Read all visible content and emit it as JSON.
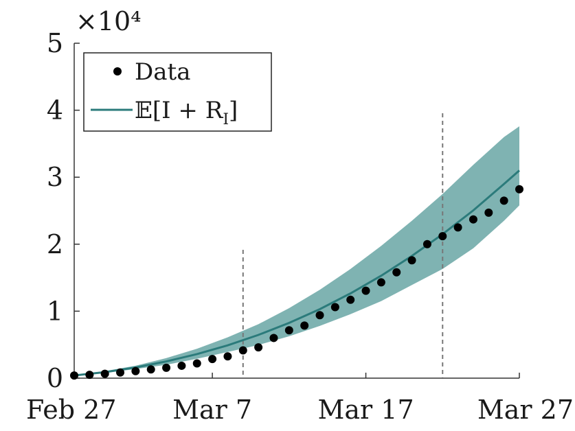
{
  "chart_data": {
    "type": "line",
    "title": "",
    "xlabel": "",
    "ylabel": "",
    "y_multiplier_label": "×10⁴",
    "x_ticks": [
      "Feb 27",
      "Mar 7",
      "Mar 17",
      "Mar 27"
    ],
    "x_tick_days": [
      0,
      9,
      19,
      29
    ],
    "xlim_days": [
      0,
      29
    ],
    "y_ticks": [
      "0",
      "1",
      "2",
      "3",
      "4",
      "5"
    ],
    "y_tick_values": [
      0,
      10000,
      20000,
      30000,
      40000,
      50000
    ],
    "ylim": [
      0,
      50000
    ],
    "vertical_lines_days": [
      11,
      24
    ],
    "colors": {
      "model": "#2b7b7b",
      "band": "#7fb3b2",
      "data": "#000000",
      "vline": "#777777",
      "axis": "#333333"
    },
    "legend": {
      "placement": "top-left",
      "entries": [
        "Data",
        "𝔼[I + R_I]"
      ]
    },
    "series": [
      {
        "name": "Data",
        "kind": "scatter",
        "x_days": [
          0,
          1,
          2,
          3,
          4,
          5,
          6,
          7,
          8,
          9,
          10,
          11,
          12,
          13,
          14,
          15,
          16,
          17,
          18,
          19,
          20,
          21,
          22,
          23,
          24,
          25,
          26,
          27,
          28,
          29
        ],
        "values": [
          400,
          500,
          650,
          850,
          1050,
          1300,
          1550,
          1850,
          2200,
          2850,
          3250,
          4150,
          4600,
          6000,
          7150,
          7850,
          9400,
          10600,
          11700,
          13050,
          14300,
          15800,
          17600,
          20000,
          21200,
          22500,
          23700,
          24700,
          26500,
          28200
        ]
      },
      {
        "name": "𝔼[I + R_I]",
        "kind": "line",
        "x_days": [
          0,
          2,
          4,
          6,
          8,
          10,
          12,
          14,
          16,
          18,
          20,
          22,
          24,
          26,
          28,
          29
        ],
        "values": [
          400,
          900,
          1600,
          2500,
          3600,
          4900,
          6450,
          8250,
          10300,
          12650,
          15300,
          18250,
          21500,
          25050,
          29000,
          31000
        ],
        "band_lower": [
          350,
          800,
          1350,
          2000,
          2900,
          3900,
          4950,
          6250,
          7800,
          9550,
          11500,
          13900,
          16300,
          19400,
          23500,
          25800
        ],
        "band_upper": [
          500,
          1050,
          1850,
          3000,
          4400,
          6100,
          8050,
          10450,
          13200,
          16300,
          19750,
          23500,
          27500,
          31850,
          36000,
          37600
        ]
      }
    ]
  }
}
